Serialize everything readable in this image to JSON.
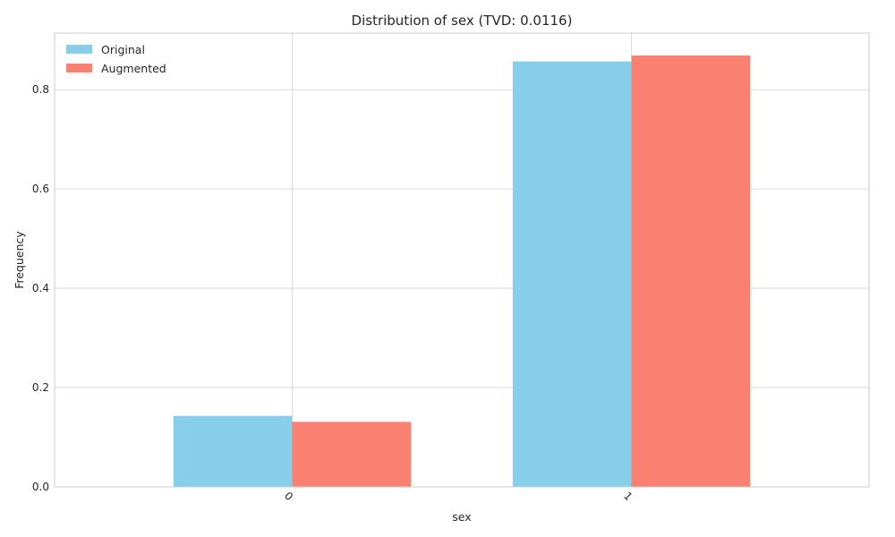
{
  "chart_data": {
    "type": "bar",
    "title": "Distribution of sex (TVD: 0.0116)",
    "xlabel": "sex",
    "ylabel": "Frequency",
    "categories": [
      "0",
      "1"
    ],
    "series": [
      {
        "name": "Original",
        "values": [
          0.143,
          0.857
        ],
        "color": "#87ceeb"
      },
      {
        "name": "Augmented",
        "values": [
          0.131,
          0.869
        ],
        "color": "#fa8072"
      }
    ],
    "ylim": [
      0,
      0.914
    ],
    "yticks": [
      0.0,
      0.2,
      0.4,
      0.6,
      0.8
    ],
    "ytick_labels": [
      "0.0",
      "0.2",
      "0.4",
      "0.6",
      "0.8"
    ],
    "grid": true,
    "legend_position": "top-left"
  }
}
